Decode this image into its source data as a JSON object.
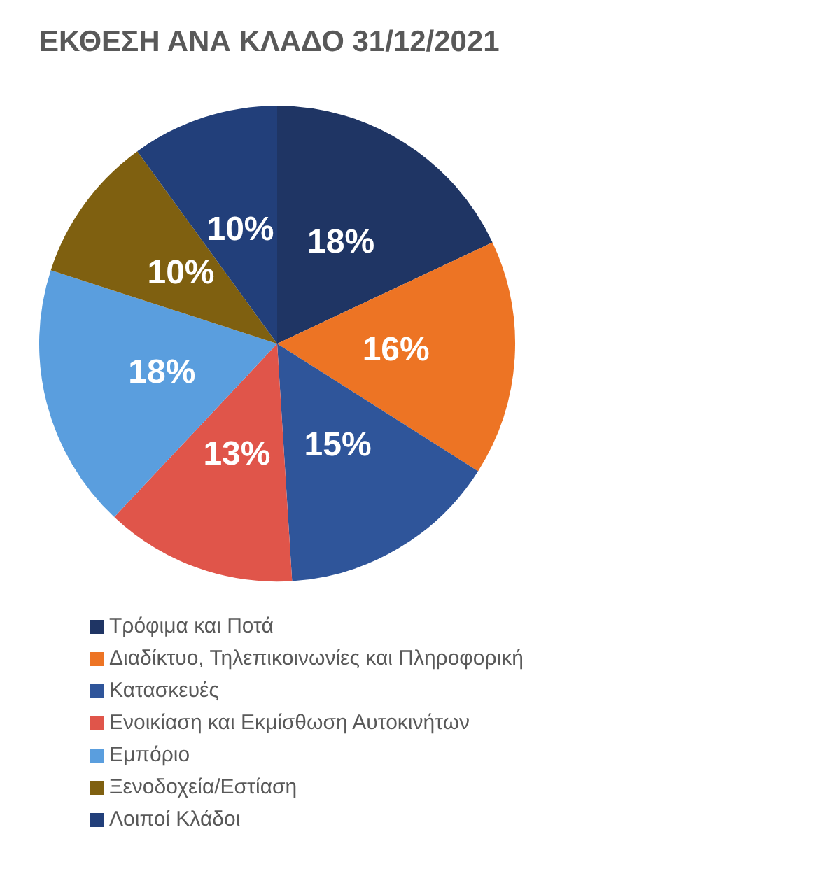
{
  "chart_data": {
    "type": "pie",
    "title": "ΕΚΘΕΣΗ ΑΝΑ ΚΛΑΔΟ 31/12/2021",
    "categories": [
      "Τρόφιμα και Ποτά",
      "Διαδίκτυο, Τηλεπικοινωνίες και Πληροφορική",
      "Κατασκευές",
      "Ενοικίαση και Εκμίσθωση Αυτοκινήτων",
      "Εμπόριο",
      "Ξενοδοχεία/Εστίαση",
      "Λοιποί Κλάδοι"
    ],
    "values": [
      18,
      16,
      15,
      13,
      18,
      10,
      10
    ],
    "value_labels": [
      "18%",
      "16%",
      "15%",
      "13%",
      "18%",
      "10%",
      "10%"
    ],
    "colors": [
      "#1f3564",
      "#ed7424",
      "#2f559a",
      "#e0554a",
      "#5a9ede",
      "#7f6010",
      "#223f7a"
    ],
    "legend": "bottom"
  }
}
